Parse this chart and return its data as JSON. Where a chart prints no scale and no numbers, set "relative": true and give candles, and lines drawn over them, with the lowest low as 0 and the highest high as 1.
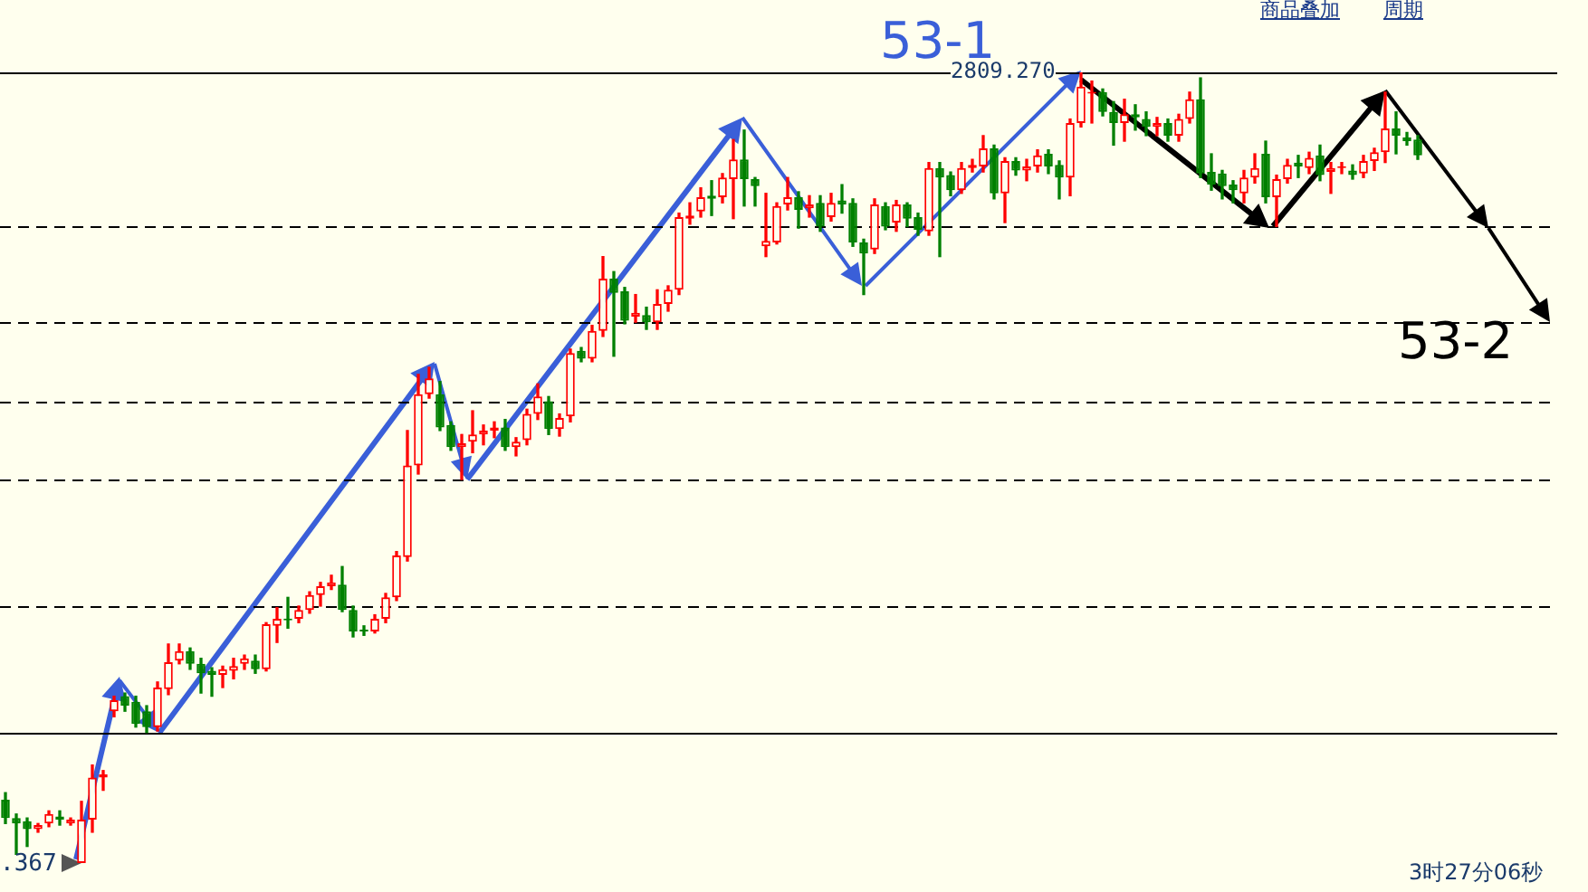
{
  "chart_data": {
    "type": "candlestick",
    "relative": true,
    "legend": false,
    "colors": [
      "#008000",
      "#008000",
      "#008000",
      "#ff0000",
      "#ff0000",
      "#008000",
      "#ff0000",
      "#ff0000",
      "#ff0000",
      "#ff0000",
      "#ff0000",
      "#008000",
      "#008000",
      "#008000",
      "#ff0000",
      "#ff0000",
      "#ff0000",
      "#008000",
      "#008000",
      "#008000",
      "#ff0000",
      "#ff0000",
      "#ff0000",
      "#008000",
      "#ff0000",
      "#ff0000",
      "#008000",
      "#ff0000",
      "#ff0000",
      "#ff0000",
      "#ff0000",
      "#008000",
      "#008000",
      "#008000",
      "#ff0000",
      "#ff0000",
      "#ff0000",
      "#ff0000",
      "#ff0000",
      "#ff0000",
      "#008000",
      "#008000",
      "#ff0000",
      "#ff0000",
      "#ff0000",
      "#ff0000",
      "#008000",
      "#ff0000",
      "#ff0000",
      "#ff0000",
      "#008000",
      "#ff0000",
      "#ff0000",
      "#008000",
      "#ff0000",
      "#ff0000",
      "#008000",
      "#008000",
      "#ff0000",
      "#008000",
      "#ff0000",
      "#ff0000",
      "#ff0000",
      "#ff0000",
      "#ff0000",
      "#008000",
      "#ff0000",
      "#ff0000",
      "#008000",
      "#008000",
      "#ff0000",
      "#ff0000",
      "#ff0000",
      "#008000",
      "#ff0000",
      "#008000",
      "#ff0000",
      "#008000",
      "#008000",
      "#008000",
      "#ff0000",
      "#008000",
      "#ff0000",
      "#008000",
      "#008000",
      "#ff0000",
      "#008000",
      "#008000",
      "#ff0000",
      "#ff0000",
      "#ff0000",
      "#008000",
      "#ff0000",
      "#008000",
      "#ff0000",
      "#ff0000",
      "#008000",
      "#008000",
      "#ff0000",
      "#ff0000",
      "#ff0000",
      "#008000",
      "#008000",
      "#ff0000",
      "#008000",
      "#008000",
      "#ff0000",
      "#008000",
      "#ff0000",
      "#ff0000",
      "#008000",
      "#008000",
      "#008000",
      "#008000",
      "#ff0000",
      "#ff0000",
      "#008000",
      "#ff0000",
      "#ff0000",
      "#008000",
      "#ff0000",
      "#008000",
      "#ff0000",
      "#ff0000",
      "#008000",
      "#ff0000",
      "#ff0000",
      "#ff0000",
      "#008000",
      "#008000",
      "#008000"
    ],
    "categories": [
      null,
      null,
      null,
      null,
      null,
      null,
      null,
      null,
      null,
      null,
      null,
      null,
      null,
      null,
      null,
      null,
      null,
      null,
      null,
      null,
      null,
      null,
      null,
      null,
      null,
      null,
      null,
      null,
      null,
      null,
      null,
      null,
      null,
      null,
      null,
      null,
      null,
      null,
      null,
      null,
      null,
      null,
      null,
      null,
      null,
      null,
      null,
      null,
      null,
      null,
      null,
      null,
      null,
      null,
      null,
      null,
      null,
      null,
      null,
      null,
      null,
      null,
      null,
      null,
      null,
      null,
      null,
      null,
      null,
      null,
      null,
      null,
      null,
      null,
      null,
      null,
      null,
      null,
      null,
      null,
      null,
      null,
      null,
      null,
      null,
      null,
      null,
      null,
      null,
      null,
      null,
      null,
      null,
      null,
      null,
      null,
      null,
      null,
      null,
      null,
      null,
      null,
      null,
      null,
      null,
      null,
      null,
      null,
      null,
      null,
      null,
      null,
      null,
      null,
      null,
      null,
      null,
      null,
      null,
      null,
      null,
      null,
      null,
      null,
      null,
      null,
      null,
      null,
      null,
      null,
      null
    ],
    "ohlc": [
      [
        0.08,
        0.089,
        0.05,
        0.057
      ],
      [
        0.057,
        0.062,
        0.011,
        0.05
      ],
      [
        0.053,
        0.057,
        0.021,
        0.043
      ],
      [
        0.043,
        0.05,
        0.039,
        0.048
      ],
      [
        0.05,
        0.066,
        0.046,
        0.062
      ],
      [
        0.059,
        0.066,
        0.048,
        0.055
      ],
      [
        0.05,
        0.057,
        0.048,
        0.055
      ],
      [
        0,
        0.078,
        0,
        0.055
      ],
      [
        0.055,
        0.124,
        0.039,
        0.108
      ],
      [
        0.108,
        0.117,
        0.092,
        0.112
      ],
      [
        0.192,
        0.211,
        0.185,
        0.206
      ],
      [
        0.211,
        0.215,
        0.192,
        0.199
      ],
      [
        0.204,
        0.211,
        0.172,
        0.176
      ],
      [
        0.192,
        0.199,
        0.165,
        0.172
      ],
      [
        0.172,
        0.229,
        0.167,
        0.222
      ],
      [
        0.22,
        0.277,
        0.213,
        0.254
      ],
      [
        0.256,
        0.277,
        0.252,
        0.268
      ],
      [
        0.268,
        0.272,
        0.245,
        0.252
      ],
      [
        0.252,
        0.259,
        0.215,
        0.24
      ],
      [
        0.243,
        0.247,
        0.211,
        0.238
      ],
      [
        0.238,
        0.249,
        0.222,
        0.245
      ],
      [
        0.243,
        0.259,
        0.233,
        0.249
      ],
      [
        0.252,
        0.263,
        0.245,
        0.259
      ],
      [
        0.256,
        0.263,
        0.24,
        0.245
      ],
      [
        0.245,
        0.304,
        0.243,
        0.302
      ],
      [
        0.3,
        0.323,
        0.279,
        0.309
      ],
      [
        0.309,
        0.336,
        0.297,
        0.307
      ],
      [
        0.309,
        0.325,
        0.304,
        0.32
      ],
      [
        0.32,
        0.343,
        0.316,
        0.339
      ],
      [
        0.339,
        0.355,
        0.325,
        0.35
      ],
      [
        0.35,
        0.364,
        0.346,
        0.355
      ],
      [
        0.352,
        0.375,
        0.318,
        0.32
      ],
      [
        0.32,
        0.325,
        0.286,
        0.293
      ],
      [
        0.295,
        0.3,
        0.288,
        0.293
      ],
      [
        0.293,
        0.314,
        0.291,
        0.309
      ],
      [
        0.309,
        0.341,
        0.304,
        0.336
      ],
      [
        0.336,
        0.394,
        0.332,
        0.389
      ],
      [
        0.387,
        0.547,
        0.382,
        0.503
      ],
      [
        0.503,
        0.618,
        0.492,
        0.593
      ],
      [
        0.593,
        0.627,
        0.588,
        0.613
      ],
      [
        0.593,
        0.609,
        0.547,
        0.551
      ],
      [
        0.554,
        0.558,
        0.522,
        0.526
      ],
      [
        0.526,
        0.542,
        0.485,
        0.531
      ],
      [
        0.533,
        0.572,
        0.519,
        0.542
      ],
      [
        0.542,
        0.554,
        0.529,
        0.547
      ],
      [
        0.547,
        0.558,
        0.538,
        0.551
      ],
      [
        0.551,
        0.561,
        0.522,
        0.526
      ],
      [
        0.526,
        0.538,
        0.515,
        0.533
      ],
      [
        0.535,
        0.574,
        0.529,
        0.568
      ],
      [
        0.568,
        0.606,
        0.561,
        0.59
      ],
      [
        0.584,
        0.59,
        0.542,
        0.549
      ],
      [
        0.549,
        0.568,
        0.54,
        0.563
      ],
      [
        0.565,
        0.65,
        0.558,
        0.645
      ],
      [
        0.648,
        0.652,
        0.634,
        0.638
      ],
      [
        0.638,
        0.68,
        0.634,
        0.673
      ],
      [
        0.673,
        0.767,
        0.666,
        0.739
      ],
      [
        0.739,
        0.748,
        0.641,
        0.721
      ],
      [
        0.723,
        0.728,
        0.682,
        0.686
      ],
      [
        0.691,
        0.719,
        0.684,
        0.696
      ],
      [
        0.693,
        0.703,
        0.675,
        0.684
      ],
      [
        0.684,
        0.725,
        0.675,
        0.707
      ],
      [
        0.707,
        0.73,
        0.698,
        0.725
      ],
      [
        0.725,
        0.822,
        0.719,
        0.817
      ],
      [
        0.815,
        0.835,
        0.808,
        0.819
      ],
      [
        0.824,
        0.854,
        0.817,
        0.842
      ],
      [
        0.844,
        0.863,
        0.819,
        0.84
      ],
      [
        0.842,
        0.872,
        0.835,
        0.867
      ],
      [
        0.865,
        0.915,
        0.815,
        0.89
      ],
      [
        0.89,
        0.927,
        0.831,
        0.865
      ],
      [
        0.865,
        0.867,
        0.831,
        0.856
      ],
      [
        0.78,
        0.847,
        0.767,
        0.787
      ],
      [
        0.785,
        0.835,
        0.783,
        0.831
      ],
      [
        0.833,
        0.867,
        0.826,
        0.842
      ],
      [
        0.842,
        0.849,
        0.803,
        0.826
      ],
      [
        0.828,
        0.844,
        0.817,
        0.833
      ],
      [
        0.835,
        0.844,
        0.799,
        0.805
      ],
      [
        0.817,
        0.847,
        0.812,
        0.835
      ],
      [
        0.838,
        0.858,
        0.822,
        0.833
      ],
      [
        0.835,
        0.84,
        0.78,
        0.785
      ],
      [
        0.785,
        0.789,
        0.719,
        0.771
      ],
      [
        0.776,
        0.84,
        0.771,
        0.833
      ],
      [
        0.831,
        0.835,
        0.801,
        0.805
      ],
      [
        0.81,
        0.838,
        0.799,
        0.833
      ],
      [
        0.833,
        0.835,
        0.805,
        0.815
      ],
      [
        0.817,
        0.822,
        0.794,
        0.801
      ],
      [
        0.799,
        0.886,
        0.794,
        0.879
      ],
      [
        0.879,
        0.886,
        0.767,
        0.867
      ],
      [
        0.87,
        0.874,
        0.844,
        0.851
      ],
      [
        0.851,
        0.886,
        0.847,
        0.879
      ],
      [
        0.879,
        0.89,
        0.874,
        0.883
      ],
      [
        0.881,
        0.92,
        0.874,
        0.904
      ],
      [
        0.904,
        0.908,
        0.84,
        0.847
      ],
      [
        0.847,
        0.892,
        0.81,
        0.888
      ],
      [
        0.888,
        0.892,
        0.87,
        0.876
      ],
      [
        0.876,
        0.89,
        0.863,
        0.881
      ],
      [
        0.881,
        0.902,
        0.874,
        0.895
      ],
      [
        0.897,
        0.902,
        0.872,
        0.881
      ],
      [
        0.883,
        0.888,
        0.84,
        0.867
      ],
      [
        0.867,
        0.941,
        0.844,
        0.936
      ],
      [
        0.936,
        1,
        0.931,
        0.982
      ],
      [
        0.973,
        0.989,
        0.936,
        0.975
      ],
      [
        0.975,
        0.979,
        0.945,
        0.95
      ],
      [
        0.95,
        0.963,
        0.908,
        0.936
      ],
      [
        0.936,
        0.966,
        0.913,
        0.947
      ],
      [
        0.947,
        0.959,
        0.927,
        0.943
      ],
      [
        0.941,
        0.95,
        0.92,
        0.931
      ],
      [
        0.931,
        0.943,
        0.92,
        0.936
      ],
      [
        0.936,
        0.941,
        0.913,
        0.92
      ],
      [
        0.92,
        0.947,
        0.913,
        0.941
      ],
      [
        0.941,
        0.975,
        0.936,
        0.966
      ],
      [
        0.966,
        0.993,
        0.867,
        0.872
      ],
      [
        0.874,
        0.897,
        0.851,
        0.858
      ],
      [
        0.872,
        0.876,
        0.84,
        0.856
      ],
      [
        0.858,
        0.863,
        0.835,
        0.851
      ],
      [
        0.847,
        0.876,
        0.835,
        0.867
      ],
      [
        0.867,
        0.897,
        0.86,
        0.879
      ],
      [
        0.897,
        0.913,
        0.835,
        0.842
      ],
      [
        0.842,
        0.87,
        0.805,
        0.865
      ],
      [
        0.865,
        0.89,
        0.86,
        0.883
      ],
      [
        0.886,
        0.895,
        0.867,
        0.881
      ],
      [
        0.879,
        0.899,
        0.872,
        0.892
      ],
      [
        0.895,
        0.908,
        0.863,
        0.87
      ],
      [
        0.874,
        0.886,
        0.847,
        0.879
      ],
      [
        0.879,
        0.886,
        0.872,
        0.881
      ],
      [
        0.876,
        0.883,
        0.865,
        0.87
      ],
      [
        0.872,
        0.895,
        0.867,
        0.888
      ],
      [
        0.888,
        0.904,
        0.876,
        0.899
      ],
      [
        0.899,
        0.975,
        0.886,
        0.929
      ],
      [
        0.929,
        0.95,
        0.897,
        0.92
      ],
      [
        0.918,
        0.924,
        0.908,
        0.913
      ],
      [
        0.915,
        0.92,
        0.89,
        0.895
      ]
    ],
    "ref_lines": [
      {
        "axis": "y",
        "value": 1,
        "color": "#000000",
        "line_style": "solid"
      },
      {
        "axis": "y",
        "value": 0.805,
        "color": "#000000",
        "line_style": "dashed"
      },
      {
        "axis": "y",
        "value": 0.684,
        "color": "#000000",
        "line_style": "dashed"
      },
      {
        "axis": "y",
        "value": 0.584,
        "color": "#000000",
        "line_style": "dashed"
      },
      {
        "axis": "y",
        "value": 0.485,
        "color": "#000000",
        "line_style": "dashed"
      },
      {
        "axis": "y",
        "value": 0.325,
        "color": "#000000",
        "line_style": "dashed"
      },
      {
        "axis": "y",
        "value": 0.165,
        "color": "#000000",
        "line_style": "solid"
      }
    ],
    "annotations": [
      "商品叠加",
      "周期",
      "53-1",
      "53-2",
      "2809.270",
      ".367",
      "3时27分06秒"
    ]
  }
}
